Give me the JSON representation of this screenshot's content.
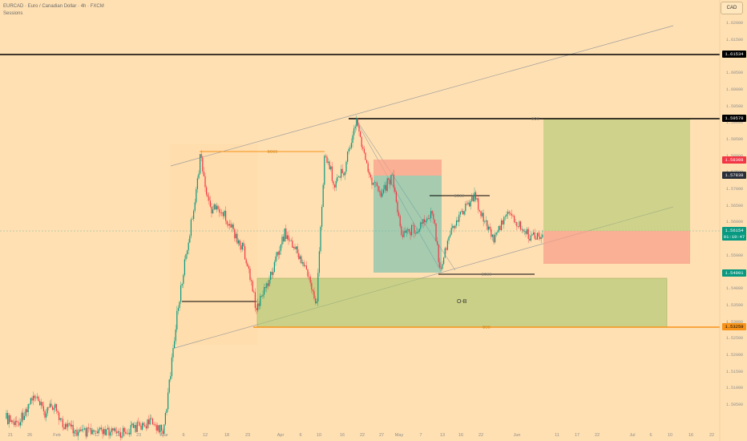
{
  "header": {
    "title": "EURCAD · Euro / Canadian Dollar · 4h · FXCM",
    "indicator": "Sessions"
  },
  "currency_button": "CAD",
  "y_axis": {
    "labels": [
      "1.62000",
      "1.61500",
      "1.61000",
      "1.60500",
      "1.60000",
      "1.59500",
      "1.59000",
      "1.58500",
      "1.58000",
      "1.57500",
      "1.57000",
      "1.56500",
      "1.56000",
      "1.55500",
      "1.55000",
      "1.54500",
      "1.54000",
      "1.53500",
      "1.53000",
      "1.52500",
      "1.52000",
      "1.51500",
      "1.51000",
      "1.50500"
    ]
  },
  "x_axis": {
    "labels": [
      "21",
      "26",
      "Feb",
      "6",
      "12",
      "18",
      "23",
      "Mar",
      "6",
      "12",
      "18",
      "23",
      "Apr",
      "6",
      "10",
      "16",
      "22",
      "27",
      "May",
      "7",
      "13",
      "16",
      "22",
      "Jun",
      "11",
      "17",
      "22",
      "Jul",
      "6",
      "10",
      "16",
      "22"
    ]
  },
  "price_labels": {
    "level_top": "1.61534",
    "bos_high": "1.59578",
    "red": "1.58308",
    "gray": "1.57838",
    "current": "1.56154",
    "countdown": "01:19:47",
    "boss_low": "1.54901",
    "bos_low": "1.53259"
  },
  "annotations": {
    "bos_top": "BOS",
    "boss_left": "BOSS",
    "boss_mid": "BOSS",
    "boss_low": "BOSS",
    "bos_low": "BOS",
    "order_block": "O-B"
  },
  "colors": {
    "background": "#ffe0b2",
    "up": "#089981",
    "down": "#f23645",
    "orange": "#f7931a",
    "zone_green": "#a8c66c",
    "zone_teal": "#4db6ac",
    "zone_red": "#f7a08a"
  }
}
